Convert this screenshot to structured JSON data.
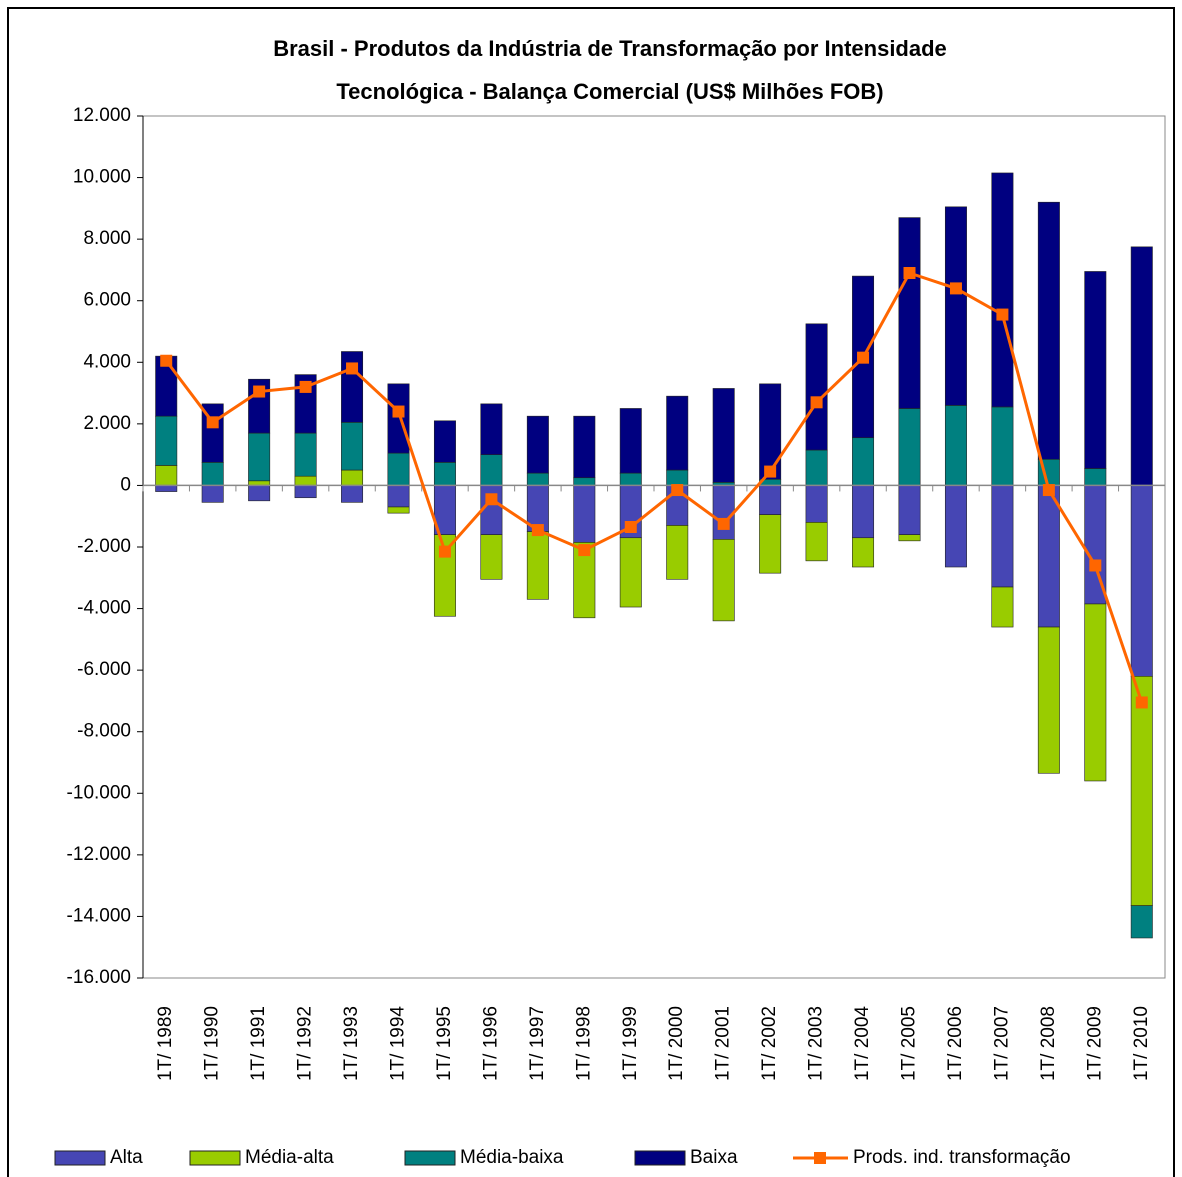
{
  "chart_data": {
    "type": "bar",
    "title": [
      "Brasil - Produtos da Indústria de Transformação por Intensidade",
      "Tecnológica - Balança Comercial (US$ Milhões FOB)"
    ],
    "categories": [
      "1T/ 1989",
      "1T/ 1990",
      "1T/ 1991",
      "1T/ 1992",
      "1T/ 1993",
      "1T/ 1994",
      "1T/ 1995",
      "1T/ 1996",
      "1T/ 1997",
      "1T/ 1998",
      "1T/ 1999",
      "1T/ 2000",
      "1T/ 2001",
      "1T/ 2002",
      "1T/ 2003",
      "1T/ 2004",
      "1T/ 2005",
      "1T/ 2006",
      "1T/ 2007",
      "1T/ 2008",
      "1T/ 2009",
      "1T/ 2010"
    ],
    "series": [
      {
        "name": "Alta",
        "color": "#4646b4",
        "values": [
          -200,
          -550,
          -500,
          -400,
          -550,
          -700,
          -1600,
          -1600,
          -1500,
          -1850,
          -1700,
          -1300,
          -1750,
          -950,
          -1200,
          -1700,
          -1600,
          -2650,
          -3300,
          -4600,
          -3850,
          -6200
        ]
      },
      {
        "name": "Média-alta",
        "color": "#99cc00",
        "values": [
          650,
          0,
          150,
          300,
          500,
          -200,
          -2650,
          -1450,
          -2200,
          -2450,
          -2250,
          -1750,
          -2650,
          -1900,
          -1250,
          -950,
          -200,
          0,
          -1300,
          -4750,
          -5750,
          -7450
        ]
      },
      {
        "name": "Média-baixa",
        "color": "#008080",
        "values": [
          1600,
          750,
          1550,
          1400,
          1550,
          1050,
          750,
          1000,
          400,
          250,
          400,
          500,
          100,
          200,
          1150,
          1550,
          2500,
          2600,
          2550,
          850,
          550,
          -1050
        ]
      },
      {
        "name": "Baixa",
        "color": "#000080",
        "values": [
          1950,
          1900,
          1750,
          1900,
          2300,
          2250,
          1350,
          1650,
          1850,
          2000,
          2100,
          2400,
          3050,
          3100,
          4100,
          5250,
          6200,
          6450,
          7600,
          8350,
          6400,
          7750
        ]
      },
      {
        "name": "Prods. ind. transformação",
        "color": "#ff6600",
        "type": "line",
        "values": [
          4050,
          2050,
          3050,
          3200,
          3800,
          2400,
          -2150,
          -450,
          -1450,
          -2100,
          -1350,
          -150,
          -1250,
          450,
          2700,
          4150,
          6900,
          6400,
          5550,
          -150,
          -2600,
          -7050
        ]
      }
    ],
    "ylim": [
      -16000,
      12000
    ],
    "yticks": [
      {
        "value": -16000,
        "label": "-16.000"
      },
      {
        "value": -14000,
        "label": "-14.000"
      },
      {
        "value": -12000,
        "label": "-12.000"
      },
      {
        "value": -10000,
        "label": "-10.000"
      },
      {
        "value": -8000,
        "label": "-8.000"
      },
      {
        "value": -6000,
        "label": "-6.000"
      },
      {
        "value": -4000,
        "label": "-4.000"
      },
      {
        "value": -2000,
        "label": "-2.000"
      },
      0,
      {
        "value": 2000,
        "label": "2.000"
      },
      {
        "value": 4000,
        "label": "4.000"
      },
      {
        "value": 6000,
        "label": "6.000"
      },
      {
        "value": 8000,
        "label": "8.000"
      },
      {
        "value": 10000,
        "label": "10.000"
      },
      {
        "value": 12000,
        "label": "12.000"
      }
    ],
    "grid": false,
    "legend": "bottom"
  }
}
